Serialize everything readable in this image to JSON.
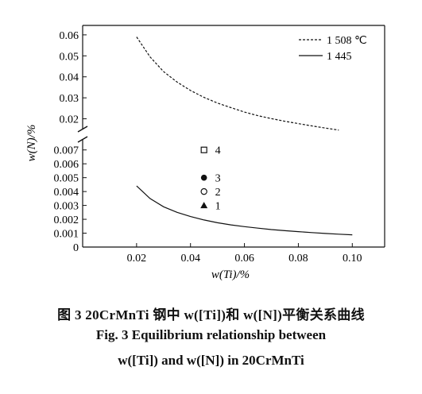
{
  "chart_data": {
    "type": "line",
    "xlabel": "w(Ti)/%",
    "ylabel": "w(N)/%",
    "x_ticks": [
      "0.02",
      "0.04",
      "0.06",
      "0.08",
      "0.10"
    ],
    "x_tick_values": [
      0.02,
      0.04,
      0.06,
      0.08,
      0.1
    ],
    "xlim": [
      0.0,
      0.112
    ],
    "y_axis_broken": true,
    "y_lower_ticks": [
      "0",
      "0.001",
      "0.002",
      "0.003",
      "0.004",
      "0.005",
      "0.006",
      "0.007"
    ],
    "y_lower_tick_values": [
      0,
      0.001,
      0.002,
      0.003,
      0.004,
      0.005,
      0.006,
      0.007
    ],
    "y_lower_range": [
      0,
      0.0075
    ],
    "y_upper_ticks": [
      "0.02",
      "0.03",
      "0.04",
      "0.05",
      "0.06"
    ],
    "y_upper_tick_values": [
      0.02,
      0.03,
      0.04,
      0.05,
      0.06
    ],
    "y_upper_range": [
      0.0115,
      0.0645
    ],
    "legend_position": "top-right",
    "series": [
      {
        "name": "1 508 ℃",
        "style": "dashed",
        "color": "#111111",
        "x": [
          0.02,
          0.025,
          0.03,
          0.035,
          0.04,
          0.045,
          0.05,
          0.055,
          0.06,
          0.065,
          0.07,
          0.075,
          0.08,
          0.085,
          0.09,
          0.095
        ],
        "y": [
          0.059,
          0.0495,
          0.0425,
          0.0375,
          0.0335,
          0.0302,
          0.0275,
          0.0253,
          0.0232,
          0.0215,
          0.0201,
          0.0188,
          0.0177,
          0.0166,
          0.0156,
          0.0146
        ]
      },
      {
        "name": "1 445",
        "style": "solid",
        "color": "#111111",
        "x": [
          0.02,
          0.025,
          0.03,
          0.035,
          0.04,
          0.045,
          0.05,
          0.055,
          0.06,
          0.065,
          0.07,
          0.075,
          0.08,
          0.085,
          0.09,
          0.095,
          0.1
        ],
        "y": [
          0.0044,
          0.0035,
          0.0029,
          0.0025,
          0.0022,
          0.00195,
          0.00175,
          0.0016,
          0.00147,
          0.00136,
          0.00126,
          0.00118,
          0.00111,
          0.00104,
          0.00098,
          0.00093,
          0.00088
        ]
      }
    ],
    "points": [
      {
        "label": "4",
        "x": 0.045,
        "y": 0.007,
        "marker": "open-square"
      },
      {
        "label": "3",
        "x": 0.045,
        "y": 0.005,
        "marker": "filled-circle"
      },
      {
        "label": "2",
        "x": 0.045,
        "y": 0.004,
        "marker": "open-circle"
      },
      {
        "label": "1",
        "x": 0.045,
        "y": 0.003,
        "marker": "filled-triangle"
      }
    ]
  },
  "caption": {
    "cn": "图 3   20CrMnTi 钢中 w([Ti])和 w([N])平衡关系曲线",
    "en_line1": "Fig. 3   Equilibrium relationship between",
    "en_line2": "w([Ti]) and w([N]) in 20CrMnTi"
  }
}
